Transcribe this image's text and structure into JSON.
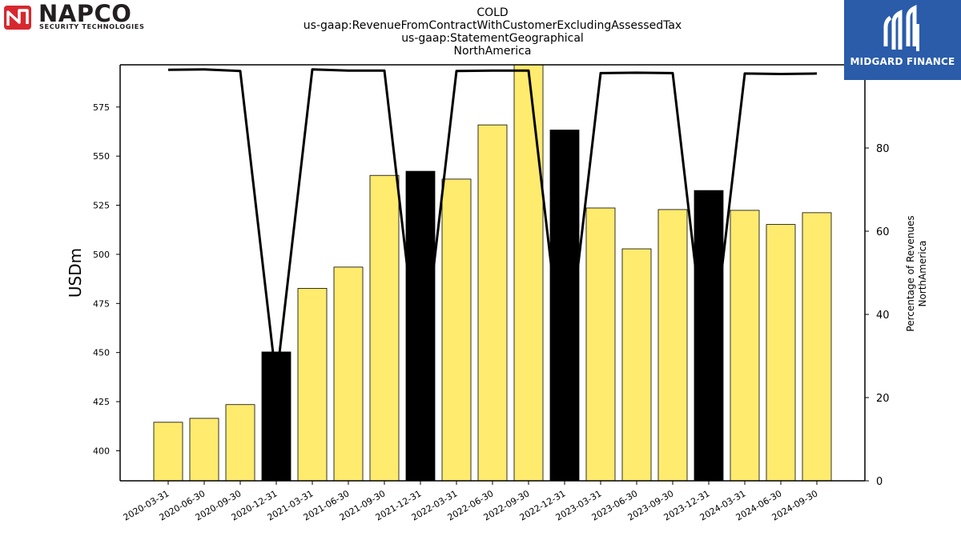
{
  "header": {
    "title_lines": [
      "COLD",
      "us-gaap:RevenueFromContractWithCustomerExcludingAssessedTax",
      "us-gaap:StatementGeographical",
      "NorthAmerica"
    ]
  },
  "logos": {
    "left": {
      "name": "NAPCO",
      "subtitle": "SECURITY TECHNOLOGIES",
      "mark_color": "#d7282f"
    },
    "right": {
      "name": "MIDGARD FINANCE",
      "background": "#2a5caa"
    }
  },
  "chart_data": {
    "type": "bar",
    "categories": [
      "2020-03-31",
      "2020-06-30",
      "2020-09-30",
      "2020-12-31",
      "2021-03-31",
      "2021-06-30",
      "2021-09-30",
      "2021-12-31",
      "2022-03-31",
      "2022-06-30",
      "2022-09-30",
      "2022-12-31",
      "2023-03-31",
      "2023-06-30",
      "2023-09-30",
      "2023-12-31",
      "2024-03-31",
      "2024-06-30",
      "2024-09-30"
    ],
    "values": [
      414.5,
      416.5,
      423.5,
      450.3,
      482.7,
      493.5,
      540.2,
      542.3,
      538.3,
      565.9,
      600.0,
      563.3,
      523.6,
      502.8,
      522.8,
      532.5,
      522.4,
      515.2,
      521.2
    ],
    "bar_colors": [
      "#ffeb6e",
      "#ffeb6e",
      "#ffeb6e",
      "#000000",
      "#ffeb6e",
      "#ffeb6e",
      "#ffeb6e",
      "#000000",
      "#ffeb6e",
      "#ffeb6e",
      "#ffeb6e",
      "#000000",
      "#ffeb6e",
      "#ffeb6e",
      "#ffeb6e",
      "#000000",
      "#ffeb6e",
      "#ffeb6e",
      "#ffeb6e"
    ],
    "ylabel": "USDm",
    "ylim": [
      384.7,
      596.5
    ],
    "yticks": [
      400,
      425,
      450,
      475,
      500,
      525,
      550,
      575
    ],
    "secondary": {
      "type": "line",
      "ylabel_lines": [
        "Percentage of Revenues",
        "NorthAmerica"
      ],
      "ylim": [
        0,
        100
      ],
      "yticks": [
        0,
        20,
        40,
        60,
        80,
        100
      ],
      "values": [
        98.8,
        98.9,
        98.5,
        24.0,
        98.9,
        98.6,
        98.6,
        24.0,
        98.5,
        98.6,
        98.6,
        24.0,
        98.0,
        98.1,
        98.0,
        24.0,
        97.9,
        97.8,
        97.9
      ],
      "color": "#000000"
    },
    "grid": false
  }
}
